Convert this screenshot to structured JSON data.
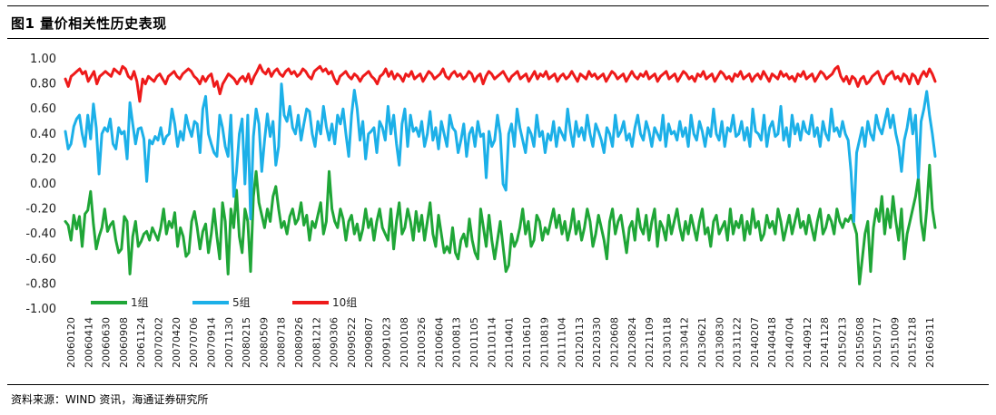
{
  "figure": {
    "title": "图1   量价相关性历史表现",
    "source": "资料来源：WIND 资讯，海通证券研究所"
  },
  "chart_data": {
    "type": "line",
    "ylim": [
      -1.0,
      1.0
    ],
    "yticks": [
      "1.00",
      "0.80",
      "0.60",
      "0.40",
      "0.20",
      "0.00",
      "-0.20",
      "-0.40",
      "-0.60",
      "-0.80",
      "-1.00"
    ],
    "yvalues": [
      1.0,
      0.8,
      0.6,
      0.4,
      0.2,
      0.0,
      -0.2,
      -0.4,
      -0.6,
      -0.8,
      -1.0
    ],
    "xtick_labels": [
      "20060120",
      "20060414",
      "20060630",
      "20060908",
      "20061124",
      "20070202",
      "20070420",
      "20070706",
      "20070914",
      "20071130",
      "20080215",
      "20080509",
      "20080718",
      "20080926",
      "20081212",
      "20090306",
      "20090522",
      "20090807",
      "20091023",
      "20100108",
      "20100326",
      "20100604",
      "20100813",
      "20101105",
      "20110114",
      "20110401",
      "20110610",
      "20110819",
      "20111104",
      "20120113",
      "20120330",
      "20120608",
      "20120824",
      "20121109",
      "20130118",
      "20130412",
      "20130621",
      "20130830",
      "20131122",
      "20140207",
      "20140418",
      "20140704",
      "20140912",
      "20141128",
      "20150213",
      "20150508",
      "20150717",
      "20151009",
      "20151218",
      "20160311"
    ],
    "legend_position": "bottom-left",
    "grid": false,
    "series": [
      {
        "name": "1组",
        "color": "#1fa637",
        "values": [
          -0.3,
          -0.33,
          -0.45,
          -0.25,
          -0.36,
          -0.26,
          -0.5,
          -0.24,
          -0.21,
          -0.06,
          -0.32,
          -0.52,
          -0.42,
          -0.35,
          -0.2,
          -0.38,
          -0.33,
          -0.3,
          -0.45,
          -0.55,
          -0.52,
          -0.26,
          -0.3,
          -0.72,
          -0.42,
          -0.3,
          -0.5,
          -0.46,
          -0.4,
          -0.38,
          -0.45,
          -0.35,
          -0.4,
          -0.45,
          -0.35,
          -0.2,
          -0.4,
          -0.3,
          -0.35,
          -0.23,
          -0.5,
          -0.35,
          -0.42,
          -0.58,
          -0.55,
          -0.3,
          -0.22,
          -0.35,
          -0.52,
          -0.38,
          -0.32,
          -0.55,
          -0.4,
          -0.2,
          -0.42,
          -0.6,
          -0.15,
          -0.3,
          -0.72,
          -0.2,
          -0.35,
          -0.05,
          -0.42,
          -0.55,
          -0.2,
          -0.3,
          -0.7,
          -0.1,
          0.1,
          -0.15,
          -0.25,
          -0.35,
          -0.2,
          -0.3,
          -0.1,
          -0.02,
          -0.2,
          -0.35,
          -0.3,
          -0.4,
          -0.26,
          -0.2,
          -0.32,
          -0.28,
          -0.15,
          -0.33,
          -0.25,
          -0.45,
          -0.3,
          -0.35,
          -0.25,
          -0.15,
          -0.4,
          -0.3,
          0.1,
          -0.2,
          -0.3,
          -0.35,
          -0.2,
          -0.28,
          -0.45,
          -0.3,
          -0.25,
          -0.4,
          -0.32,
          -0.45,
          -0.36,
          -0.2,
          -0.35,
          -0.28,
          -0.45,
          -0.3,
          -0.2,
          -0.35,
          -0.4,
          -0.45,
          -0.2,
          -0.52,
          -0.3,
          -0.15,
          -0.4,
          -0.35,
          -0.2,
          -0.3,
          -0.45,
          -0.22,
          -0.38,
          -0.25,
          -0.45,
          -0.3,
          -0.15,
          -0.4,
          -0.5,
          -0.25,
          -0.4,
          -0.55,
          -0.5,
          -0.55,
          -0.35,
          -0.55,
          -0.6,
          -0.45,
          -0.4,
          -0.5,
          -0.28,
          -0.45,
          -0.55,
          -0.6,
          -0.2,
          -0.35,
          -0.5,
          -0.25,
          -0.45,
          -0.6,
          -0.45,
          -0.3,
          -0.5,
          -0.7,
          -0.65,
          -0.4,
          -0.5,
          -0.45,
          -0.35,
          -0.2,
          -0.4,
          -0.3,
          -0.5,
          -0.45,
          -0.25,
          -0.3,
          -0.45,
          -0.35,
          -0.4,
          -0.3,
          -0.2,
          -0.35,
          -0.25,
          -0.4,
          -0.3,
          -0.45,
          -0.35,
          -0.2,
          -0.4,
          -0.3,
          -0.45,
          -0.35,
          -0.2,
          -0.3,
          -0.5,
          -0.4,
          -0.25,
          -0.35,
          -0.45,
          -0.6,
          -0.3,
          -0.2,
          -0.4,
          -0.3,
          -0.25,
          -0.4,
          -0.55,
          -0.35,
          -0.3,
          -0.45,
          -0.2,
          -0.35,
          -0.4,
          -0.25,
          -0.45,
          -0.3,
          -0.2,
          -0.5,
          -0.3,
          -0.35,
          -0.45,
          -0.25,
          -0.4,
          -0.3,
          -0.2,
          -0.35,
          -0.45,
          -0.3,
          -0.4,
          -0.25,
          -0.35,
          -0.45,
          -0.3,
          -0.2,
          -0.4,
          -0.35,
          -0.5,
          -0.3,
          -0.25,
          -0.4,
          -0.35,
          -0.3,
          -0.45,
          -0.2,
          -0.4,
          -0.3,
          -0.35,
          -0.25,
          -0.45,
          -0.3,
          -0.4,
          -0.2,
          -0.35,
          -0.3,
          -0.45,
          -0.4,
          -0.25,
          -0.35,
          -0.3,
          -0.4,
          -0.2,
          -0.3,
          -0.45,
          -0.35,
          -0.25,
          -0.4,
          -0.3,
          -0.2,
          -0.35,
          -0.3,
          -0.4,
          -0.25,
          -0.35,
          -0.45,
          -0.3,
          -0.2,
          -0.4,
          -0.35,
          -0.25,
          -0.3,
          -0.4,
          -0.2,
          -0.3,
          -0.35,
          -0.28,
          -0.3,
          -0.25,
          -0.32,
          -0.4,
          -0.8,
          -0.6,
          -0.4,
          -0.3,
          -0.7,
          -0.35,
          -0.2,
          -0.3,
          -0.1,
          -0.4,
          -0.2,
          -0.35,
          -0.1,
          -0.3,
          -0.45,
          -0.2,
          -0.6,
          -0.4,
          -0.3,
          -0.2,
          -0.1,
          0.05,
          -0.3,
          -0.45,
          -0.2,
          0.15,
          -0.2,
          -0.35
        ]
      },
      {
        "name": "5组",
        "color": "#1cb0e8",
        "values": [
          0.42,
          0.28,
          0.32,
          0.46,
          0.52,
          0.55,
          0.4,
          0.3,
          0.55,
          0.36,
          0.64,
          0.45,
          0.08,
          0.4,
          0.45,
          0.42,
          0.52,
          0.32,
          0.28,
          0.45,
          0.4,
          0.42,
          0.2,
          0.65,
          0.48,
          0.32,
          0.44,
          0.45,
          0.36,
          0.02,
          0.35,
          0.32,
          0.38,
          0.35,
          0.45,
          0.32,
          0.38,
          0.4,
          0.6,
          0.48,
          0.3,
          0.42,
          0.35,
          0.55,
          0.45,
          0.38,
          0.5,
          0.48,
          0.25,
          0.6,
          0.7,
          0.4,
          0.32,
          0.25,
          0.22,
          0.55,
          0.45,
          0.3,
          0.22,
          0.55,
          -0.1,
          0.1,
          0.4,
          0.52,
          0.0,
          0.55,
          -0.28,
          0.38,
          0.6,
          0.48,
          0.1,
          0.35,
          0.56,
          0.38,
          0.5,
          0.15,
          0.3,
          0.8,
          0.55,
          0.5,
          0.62,
          0.45,
          0.4,
          0.55,
          0.35,
          0.48,
          0.6,
          0.58,
          0.4,
          0.3,
          0.5,
          0.4,
          0.62,
          0.46,
          0.35,
          0.48,
          0.32,
          0.55,
          0.48,
          0.6,
          0.4,
          0.22,
          0.55,
          0.75,
          0.6,
          0.35,
          0.5,
          0.2,
          0.4,
          0.42,
          0.45,
          0.25,
          0.5,
          0.45,
          0.35,
          0.62,
          0.4,
          0.55,
          0.32,
          0.15,
          0.48,
          0.6,
          0.3,
          0.55,
          0.42,
          0.45,
          0.38,
          0.5,
          0.3,
          0.4,
          0.58,
          0.35,
          0.45,
          0.28,
          0.5,
          0.4,
          0.3,
          0.55,
          0.45,
          0.42,
          0.25,
          0.35,
          0.48,
          0.22,
          0.4,
          0.45,
          0.3,
          0.5,
          0.38,
          0.4,
          0.05,
          0.42,
          0.3,
          0.35,
          0.55,
          0.4,
          0.0,
          -0.05,
          0.4,
          0.48,
          0.3,
          0.6,
          0.45,
          0.35,
          0.25,
          0.45,
          0.4,
          0.3,
          0.55,
          0.38,
          0.42,
          0.25,
          0.4,
          0.35,
          0.5,
          0.3,
          0.45,
          0.4,
          0.35,
          0.6,
          0.42,
          0.3,
          0.5,
          0.38,
          0.45,
          0.35,
          0.55,
          0.4,
          0.3,
          0.48,
          0.42,
          0.35,
          0.25,
          0.45,
          0.4,
          0.3,
          0.55,
          0.38,
          0.42,
          0.5,
          0.35,
          0.4,
          0.3,
          0.45,
          0.55,
          0.4,
          0.35,
          0.5,
          0.42,
          0.3,
          0.45,
          0.4,
          0.35,
          0.55,
          0.3,
          0.48,
          0.4,
          0.42,
          0.35,
          0.5,
          0.38,
          0.45,
          0.3,
          0.55,
          0.4,
          0.35,
          0.5,
          0.42,
          0.3,
          0.45,
          0.38,
          0.6,
          0.4,
          0.35,
          0.5,
          0.3,
          0.45,
          0.42,
          0.55,
          0.38,
          0.4,
          0.5,
          0.35,
          0.45,
          0.3,
          0.6,
          0.42,
          0.4,
          0.35,
          0.55,
          0.3,
          0.45,
          0.5,
          0.38,
          0.4,
          0.62,
          0.35,
          0.45,
          0.3,
          0.55,
          0.4,
          0.48,
          0.35,
          0.5,
          0.42,
          0.4,
          0.55,
          0.38,
          0.45,
          0.3,
          0.5,
          0.4,
          0.35,
          0.6,
          0.42,
          0.45,
          0.38,
          0.5,
          0.4,
          0.35,
          0.1,
          -0.3,
          0.25,
          0.35,
          0.45,
          0.3,
          0.5,
          0.4,
          0.35,
          0.55,
          0.45,
          0.4,
          0.5,
          0.6,
          0.45,
          0.55,
          0.4,
          0.3,
          0.1,
          0.35,
          0.45,
          0.6,
          0.4,
          0.55,
          0.05,
          0.5,
          0.6,
          0.74,
          0.55,
          0.4,
          0.22
        ]
      },
      {
        "name": "10组",
        "color": "#ee1a1a",
        "values": [
          0.84,
          0.78,
          0.86,
          0.88,
          0.9,
          0.92,
          0.88,
          0.9,
          0.82,
          0.86,
          0.9,
          0.8,
          0.86,
          0.88,
          0.9,
          0.88,
          0.86,
          0.92,
          0.9,
          0.88,
          0.94,
          0.92,
          0.86,
          0.84,
          0.9,
          0.82,
          0.66,
          0.84,
          0.8,
          0.86,
          0.84,
          0.82,
          0.86,
          0.88,
          0.84,
          0.8,
          0.86,
          0.88,
          0.9,
          0.86,
          0.84,
          0.88,
          0.9,
          0.92,
          0.9,
          0.86,
          0.84,
          0.8,
          0.86,
          0.82,
          0.86,
          0.88,
          0.78,
          0.82,
          0.72,
          0.8,
          0.84,
          0.88,
          0.86,
          0.84,
          0.8,
          0.84,
          0.86,
          0.82,
          0.88,
          0.8,
          0.86,
          0.9,
          0.95,
          0.9,
          0.88,
          0.92,
          0.86,
          0.9,
          0.92,
          0.88,
          0.86,
          0.9,
          0.92,
          0.88,
          0.9,
          0.86,
          0.88,
          0.92,
          0.9,
          0.86,
          0.84,
          0.9,
          0.92,
          0.94,
          0.9,
          0.92,
          0.88,
          0.9,
          0.84,
          0.8,
          0.86,
          0.88,
          0.9,
          0.86,
          0.84,
          0.88,
          0.86,
          0.82,
          0.86,
          0.88,
          0.9,
          0.86,
          0.84,
          0.8,
          0.86,
          0.88,
          0.92,
          0.86,
          0.9,
          0.84,
          0.88,
          0.86,
          0.82,
          0.88,
          0.86,
          0.9,
          0.84,
          0.86,
          0.88,
          0.82,
          0.86,
          0.9,
          0.88,
          0.84,
          0.86,
          0.88,
          0.92,
          0.86,
          0.84,
          0.88,
          0.9,
          0.86,
          0.88,
          0.84,
          0.86,
          0.9,
          0.88,
          0.82,
          0.86,
          0.88,
          0.8,
          0.86,
          0.9,
          0.88,
          0.84,
          0.86,
          0.88,
          0.9,
          0.86,
          0.82,
          0.86,
          0.88,
          0.9,
          0.84,
          0.86,
          0.88,
          0.82,
          0.86,
          0.9,
          0.84,
          0.88,
          0.86,
          0.9,
          0.84,
          0.86,
          0.88,
          0.82,
          0.86,
          0.88,
          0.84,
          0.86,
          0.9,
          0.86,
          0.82,
          0.88,
          0.86,
          0.84,
          0.9,
          0.86,
          0.88,
          0.84,
          0.86,
          0.88,
          0.82,
          0.86,
          0.9,
          0.88,
          0.84,
          0.86,
          0.88,
          0.82,
          0.86,
          0.9,
          0.86,
          0.84,
          0.88,
          0.86,
          0.9,
          0.84,
          0.86,
          0.88,
          0.82,
          0.86,
          0.88,
          0.9,
          0.84,
          0.86,
          0.88,
          0.82,
          0.86,
          0.9,
          0.88,
          0.84,
          0.86,
          0.82,
          0.88,
          0.86,
          0.9,
          0.84,
          0.86,
          0.88,
          0.82,
          0.86,
          0.9,
          0.88,
          0.84,
          0.86,
          0.82,
          0.88,
          0.86,
          0.9,
          0.84,
          0.86,
          0.88,
          0.82,
          0.86,
          0.88,
          0.84,
          0.9,
          0.86,
          0.82,
          0.88,
          0.86,
          0.84,
          0.9,
          0.86,
          0.88,
          0.84,
          0.86,
          0.82,
          0.88,
          0.86,
          0.9,
          0.84,
          0.86,
          0.88,
          0.82,
          0.86,
          0.9,
          0.88,
          0.84,
          0.86,
          0.88,
          0.92,
          0.94,
          0.86,
          0.82,
          0.86,
          0.8,
          0.86,
          0.84,
          0.78,
          0.84,
          0.86,
          0.8,
          0.82,
          0.86,
          0.88,
          0.9,
          0.84,
          0.8,
          0.86,
          0.88,
          0.9,
          0.84,
          0.86,
          0.82,
          0.88,
          0.86,
          0.8,
          0.88,
          0.86,
          0.8,
          0.86,
          0.9,
          0.86,
          0.92,
          0.88,
          0.82
        ]
      }
    ]
  }
}
